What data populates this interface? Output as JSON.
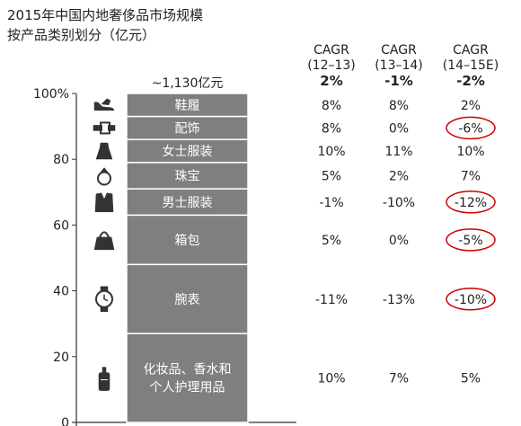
{
  "title": [
    "2015年中国内地奢侈品市场规模",
    "按产品类别划分（亿元）"
  ],
  "chart_data": {
    "type": "bar",
    "stacked": true,
    "total_label": "~1,130亿元",
    "ylim": [
      0,
      100
    ],
    "yticks": [
      "0",
      "20",
      "40",
      "60",
      "80",
      "100%"
    ],
    "ytick_values": [
      0,
      20,
      40,
      60,
      80,
      100
    ],
    "categories": [
      {
        "name": "鞋履",
        "lines": [
          "鞋履"
        ],
        "share": 7,
        "icon": "shoe-icon"
      },
      {
        "name": "配饰",
        "lines": [
          "配饰"
        ],
        "share": 7,
        "icon": "belt-icon"
      },
      {
        "name": "女士服装",
        "lines": [
          "女士服装"
        ],
        "share": 7,
        "icon": "dress-icon"
      },
      {
        "name": "珠宝",
        "lines": [
          "珠宝"
        ],
        "share": 8,
        "icon": "ring-icon"
      },
      {
        "name": "男士服装",
        "lines": [
          "男士服装"
        ],
        "share": 8,
        "icon": "suit-icon"
      },
      {
        "name": "箱包",
        "lines": [
          "箱包"
        ],
        "share": 15,
        "icon": "handbag-icon"
      },
      {
        "name": "腕表",
        "lines": [
          "腕表"
        ],
        "share": 21,
        "icon": "watch-icon"
      },
      {
        "name": "化妆品、香水和个人护理用品",
        "lines": [
          "化妆品、香水和",
          "个人护理用品"
        ],
        "share": 27,
        "icon": "perfume-icon"
      }
    ],
    "cagr_columns": [
      {
        "header": "CAGR",
        "period": "(12–13)",
        "total": "2%"
      },
      {
        "header": "CAGR",
        "period": "(13–14)",
        "total": "-1%"
      },
      {
        "header": "CAGR",
        "period": "(14–15E)",
        "total": "-2%"
      }
    ],
    "cagr_rows": [
      [
        "8%",
        "8%",
        "2%"
      ],
      [
        "8%",
        "0%",
        "-6%"
      ],
      [
        "10%",
        "11%",
        "10%"
      ],
      [
        "5%",
        "2%",
        "7%"
      ],
      [
        "-1%",
        "-10%",
        "-12%"
      ],
      [
        "5%",
        "0%",
        "-5%"
      ],
      [
        "-11%",
        "-13%",
        "-10%"
      ],
      [
        "10%",
        "7%",
        "5%"
      ]
    ],
    "highlighted_cells": [
      [
        1,
        2
      ],
      [
        4,
        2
      ],
      [
        5,
        2
      ],
      [
        6,
        2
      ]
    ],
    "colors": {
      "bar": "#7f7f7f",
      "highlight": "#cc0000",
      "text": "#222222",
      "axis": "#333333",
      "icon": "#333333"
    }
  }
}
